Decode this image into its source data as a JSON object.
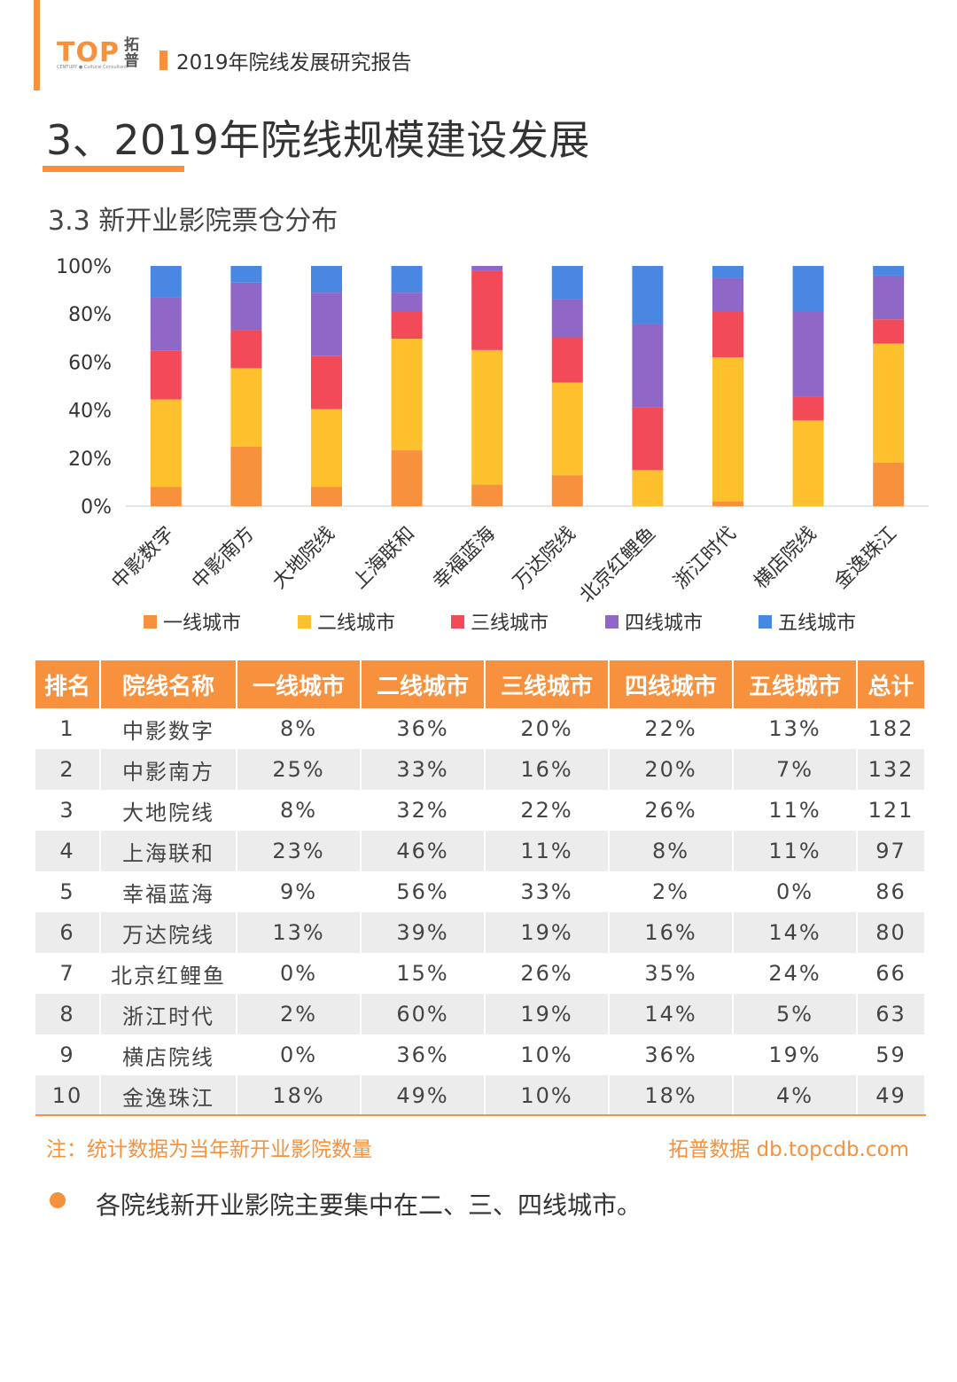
{
  "header": {
    "logo_text": "TOP",
    "logo_sub": "CENTURY ● Cultural Consultant",
    "logo_cn": "拓普",
    "report_title": "2019年院线发展研究报告"
  },
  "main_title": "3、2019年院线规模建设发展",
  "sub_title": "3.3 新开业影院票仓分布",
  "colors": {
    "accent": "#f7913d",
    "tier1": "#f7913d",
    "tier2": "#fcc12d",
    "tier3": "#f34a5a",
    "tier4": "#8f68c7",
    "tier5": "#4a87e3"
  },
  "chart_data": {
    "type": "bar",
    "stacked": true,
    "categories": [
      "中影数字",
      "中影南方",
      "大地院线",
      "上海联和",
      "幸福蓝海",
      "万达院线",
      "北京红鲤鱼",
      "浙江时代",
      "横店院线",
      "金逸珠江"
    ],
    "series": [
      {
        "name": "一线城市",
        "values": [
          8,
          25,
          8,
          23,
          9,
          13,
          0,
          2,
          0,
          18
        ]
      },
      {
        "name": "二线城市",
        "values": [
          36,
          33,
          32,
          46,
          56,
          39,
          15,
          60,
          36,
          49
        ]
      },
      {
        "name": "三线城市",
        "values": [
          20,
          16,
          22,
          11,
          33,
          19,
          26,
          19,
          10,
          10
        ]
      },
      {
        "name": "四线城市",
        "values": [
          22,
          20,
          26,
          8,
          2,
          16,
          35,
          14,
          36,
          18
        ]
      },
      {
        "name": "五线城市",
        "values": [
          13,
          7,
          11,
          11,
          0,
          14,
          24,
          5,
          19,
          4
        ]
      }
    ],
    "ylim": [
      0,
      100
    ],
    "yticks": [
      "0%",
      "20%",
      "40%",
      "60%",
      "80%",
      "100%"
    ],
    "legend_position": "bottom",
    "grid": false
  },
  "table": {
    "headers": [
      "排名",
      "院线名称",
      "一线城市",
      "二线城市",
      "三线城市",
      "四线城市",
      "五线城市",
      "总计"
    ],
    "rows": [
      [
        "1",
        "中影数字",
        "8%",
        "36%",
        "20%",
        "22%",
        "13%",
        "182"
      ],
      [
        "2",
        "中影南方",
        "25%",
        "33%",
        "16%",
        "20%",
        "7%",
        "132"
      ],
      [
        "3",
        "大地院线",
        "8%",
        "32%",
        "22%",
        "26%",
        "11%",
        "121"
      ],
      [
        "4",
        "上海联和",
        "23%",
        "46%",
        "11%",
        "8%",
        "11%",
        "97"
      ],
      [
        "5",
        "幸福蓝海",
        "9%",
        "56%",
        "33%",
        "2%",
        "0%",
        "86"
      ],
      [
        "6",
        "万达院线",
        "13%",
        "39%",
        "19%",
        "16%",
        "14%",
        "80"
      ],
      [
        "7",
        "北京红鲤鱼",
        "0%",
        "15%",
        "26%",
        "35%",
        "24%",
        "66"
      ],
      [
        "8",
        "浙江时代",
        "2%",
        "60%",
        "19%",
        "14%",
        "5%",
        "63"
      ],
      [
        "9",
        "横店院线",
        "0%",
        "36%",
        "10%",
        "36%",
        "19%",
        "59"
      ],
      [
        "10",
        "金逸珠江",
        "18%",
        "49%",
        "10%",
        "18%",
        "4%",
        "49"
      ]
    ]
  },
  "footer": {
    "note": "注：统计数据为当年新开业影院数量",
    "source": "拓普数据 db.topcdb.com"
  },
  "bullet": "各院线新开业影院主要集中在二、三、四线城市。"
}
